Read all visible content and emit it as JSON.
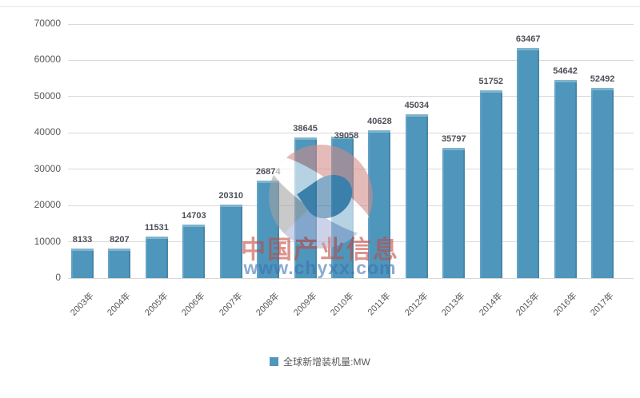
{
  "chart_data": {
    "type": "bar",
    "title": "",
    "xlabel": "",
    "ylabel": "",
    "categories": [
      "2003年",
      "2004年",
      "2005年",
      "2006年",
      "2007年",
      "2008年",
      "2009年",
      "2010年",
      "2011年",
      "2012年",
      "2013年",
      "2014年",
      "2015年",
      "2016年",
      "2017年"
    ],
    "values": [
      8133,
      8207,
      11531,
      14703,
      20310,
      26874,
      38645,
      39058,
      40628,
      45034,
      35797,
      51752,
      63467,
      54642,
      52492
    ],
    "legend_label": "全球新增装机量:MW",
    "legend_position": "bottom-center",
    "ylim": [
      0,
      70000
    ],
    "yticks": [
      0,
      10000,
      20000,
      30000,
      40000,
      50000,
      60000,
      70000
    ],
    "grid": true,
    "bar_color": "#4e96bc"
  },
  "colors": {
    "bar": "#4e96bc",
    "bar_top_edge": "#7fb4cc",
    "gridline": "#d9d9d9",
    "axis_text": "#595959",
    "data_label_text": "#4d4f57",
    "watermark_red": "#c2473f",
    "watermark_blue": "#3a6fb0"
  },
  "watermark": {
    "brand_text": "中国产业信息",
    "url_text": "www.chyxx.com"
  }
}
